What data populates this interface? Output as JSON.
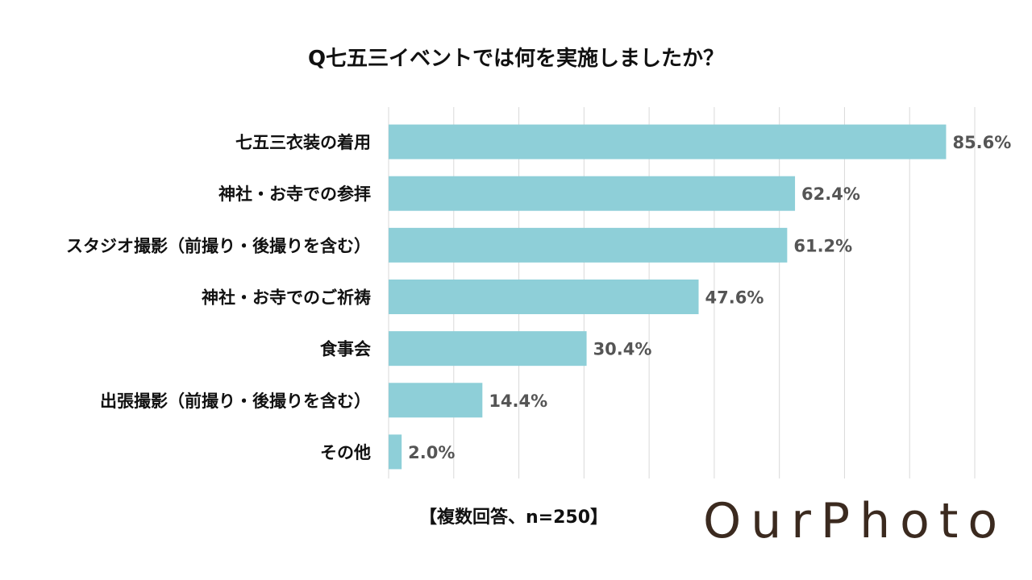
{
  "chart_data": {
    "type": "bar",
    "orientation": "horizontal",
    "title": "Q七五三イベントでは何を実施しましたか？",
    "categories": [
      "七五三衣装の着用",
      "神社・お寺での参拝",
      "スタジオ撮影（前撮り・後撮りを含む）",
      "神社・お寺でのご祈祷",
      "食事会",
      "出張撮影（前撮り・後撮りを含む）",
      "その他"
    ],
    "values": [
      85.6,
      62.4,
      61.2,
      47.6,
      30.4,
      14.4,
      2.0
    ],
    "value_labels": [
      "85.6%",
      "62.4%",
      "61.2%",
      "47.6%",
      "30.4%",
      "14.4%",
      "2.0%"
    ],
    "xlim": [
      0,
      90
    ],
    "grid": true,
    "bar_color": "#8ecfd8",
    "xlabel": "",
    "ylabel": ""
  },
  "note": "【複数回答、n=250】",
  "logo": "OurPhoto"
}
